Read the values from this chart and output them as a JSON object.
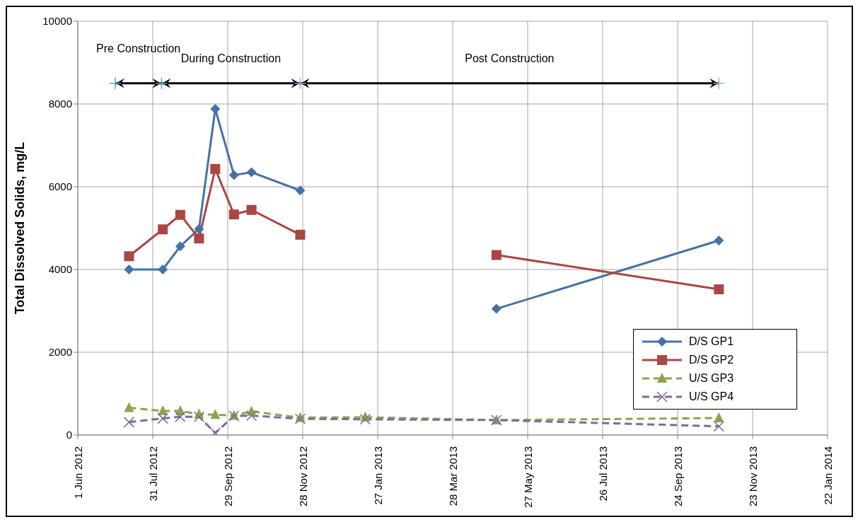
{
  "chart_data": {
    "type": "line",
    "ylabel": "Total Dissolved Solids, mg/L",
    "x": [
      "2012-07-12",
      "2012-08-08",
      "2012-08-22",
      "2012-09-06",
      "2012-09-19",
      "2012-10-04",
      "2012-10-18",
      "2012-11-26",
      "2013-01-17",
      "2013-05-02",
      "2013-10-27"
    ],
    "series": [
      {
        "name": "D/S GP1",
        "color": "#4572a7",
        "marker": "diamond",
        "line_style": "solid",
        "values": [
          4000,
          4000,
          4560,
          4980,
          7880,
          6280,
          6350,
          5910,
          null,
          3050,
          4700
        ]
      },
      {
        "name": "D/S GP2",
        "color": "#aa4643",
        "marker": "square",
        "line_style": "solid",
        "values": [
          4320,
          4970,
          5320,
          4750,
          6430,
          5330,
          5440,
          4840,
          null,
          4350,
          3520
        ]
      },
      {
        "name": "U/S GP3",
        "color": "#89a54e",
        "marker": "triangle",
        "line_style": "dashed",
        "values": [
          660,
          580,
          580,
          500,
          490,
          470,
          570,
          420,
          430,
          360,
          410
        ]
      },
      {
        "type": "line",
        "x": [
          "2012-07-01",
          "2012-08-07",
          "2012-11-26",
          "2013-10-27"
        ],
        "color": "#000000",
        "colors": [
          "#4bacc6",
          "#4bacc6",
          "#95b3d7",
          "#95b3d7"
        ],
        "marker": "plus",
        "line_style": "solid",
        "values": [
          8500,
          8500,
          8500,
          8500
        ]
      },
      {
        "name": "U/S GP4",
        "color": "#80699b",
        "marker": "cross",
        "line_style": "dashed",
        "values": [
          310,
          400,
          440,
          440,
          50,
          460,
          470,
          390,
          380,
          360,
          210
        ]
      }
    ],
    "xlim": [
      "2012-06-01",
      "2014-01-22"
    ],
    "xticks": [
      {
        "value": "2012-06-01",
        "label": "1 Jun 2012"
      },
      {
        "value": "2012-07-31",
        "label": "31 Jul 2012"
      },
      {
        "value": "2012-09-29",
        "label": "29 Sep 2012"
      },
      {
        "value": "2012-11-28",
        "label": "28 Nov 2012"
      },
      {
        "value": "2013-01-27",
        "label": "27 Jan 2013"
      },
      {
        "value": "2013-03-28",
        "label": "28 Mar 2013"
      },
      {
        "value": "2013-05-27",
        "label": "27 May 2013"
      },
      {
        "value": "2013-07-26",
        "label": "26 Jul 2013"
      },
      {
        "value": "2013-09-24",
        "label": "24 Sep 2013"
      },
      {
        "value": "2013-11-23",
        "label": "23 Nov 2013"
      },
      {
        "value": "2014-01-22",
        "label": "22 Jan 2014"
      }
    ],
    "ylim": [
      0,
      10000
    ],
    "yticks": [
      0,
      2000,
      4000,
      6000,
      8000,
      10000
    ],
    "annotations": [
      "Pre Construction",
      "During Construction",
      "Post Construction"
    ],
    "grid": true,
    "legend": "bottom right"
  }
}
